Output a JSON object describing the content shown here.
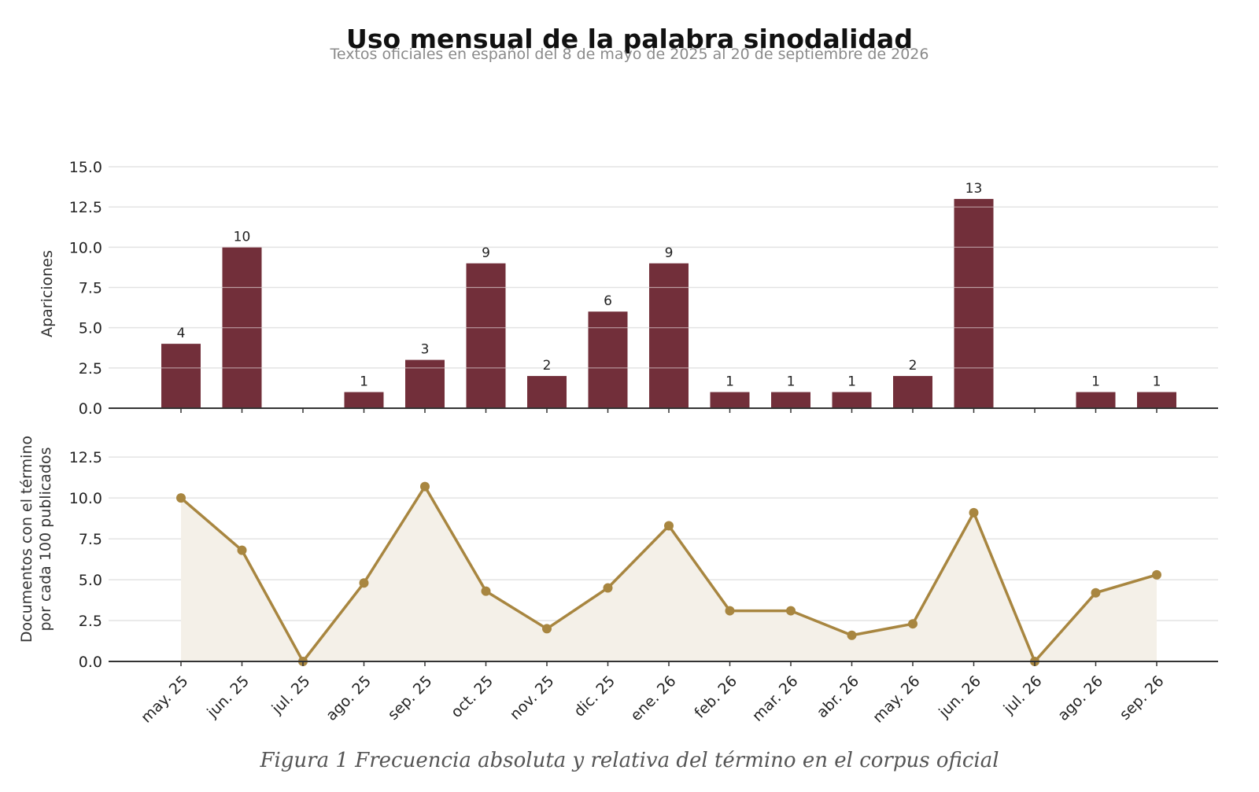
{
  "title": "Uso mensual de la palabra sinodalidad",
  "subtitle": "Textos oficiales en español del 8 de mayo de 2025 al 20 de septiembre de 2026",
  "caption": "Figura 1  Frecuencia absoluta y relativa del término en el corpus oficial",
  "colors": {
    "bar": "#722F3A",
    "line": "#A88640",
    "area": "#F4F0E8",
    "grid": "#e3e3e3",
    "axis": "#333333"
  },
  "chart_data": [
    {
      "type": "bar",
      "categories": [
        "may. 25",
        "jun. 25",
        "jul. 25",
        "ago. 25",
        "sep. 25",
        "oct. 25",
        "nov. 25",
        "dic. 25",
        "ene. 26",
        "feb. 26",
        "mar. 26",
        "abr. 26",
        "may. 26",
        "jun. 26",
        "jul. 26",
        "ago. 26",
        "sep. 26"
      ],
      "values": [
        4,
        10,
        0,
        1,
        3,
        9,
        2,
        6,
        9,
        1,
        1,
        1,
        2,
        13,
        0,
        1,
        1
      ],
      "data_labels": [
        "4",
        "10",
        "",
        "1",
        "3",
        "9",
        "2",
        "6",
        "9",
        "1",
        "1",
        "1",
        "2",
        "13",
        "",
        "1",
        "1"
      ],
      "ylabel": "Apariciones",
      "ylim": [
        0,
        15
      ],
      "yticks": [
        "0.0",
        "2.5",
        "5.0",
        "7.5",
        "10.0",
        "12.5",
        "15.0"
      ],
      "grid": true
    },
    {
      "type": "area",
      "categories": [
        "may. 25",
        "jun. 25",
        "jul. 25",
        "ago. 25",
        "sep. 25",
        "oct. 25",
        "nov. 25",
        "dic. 25",
        "ene. 26",
        "feb. 26",
        "mar. 26",
        "abr. 26",
        "may. 26",
        "jun. 26",
        "jul. 26",
        "ago. 26",
        "sep. 26"
      ],
      "values": [
        10.0,
        6.8,
        0.0,
        4.8,
        10.7,
        4.3,
        2.0,
        4.5,
        8.3,
        3.1,
        3.1,
        1.6,
        2.3,
        9.1,
        0.0,
        4.2,
        5.3
      ],
      "ylabel": [
        "Documentos con el término",
        "por cada 100 publicados"
      ],
      "ylim": [
        0,
        14
      ],
      "yticks": [
        "0.0",
        "2.5",
        "5.0",
        "7.5",
        "10.0",
        "12.5"
      ],
      "grid": true
    }
  ]
}
